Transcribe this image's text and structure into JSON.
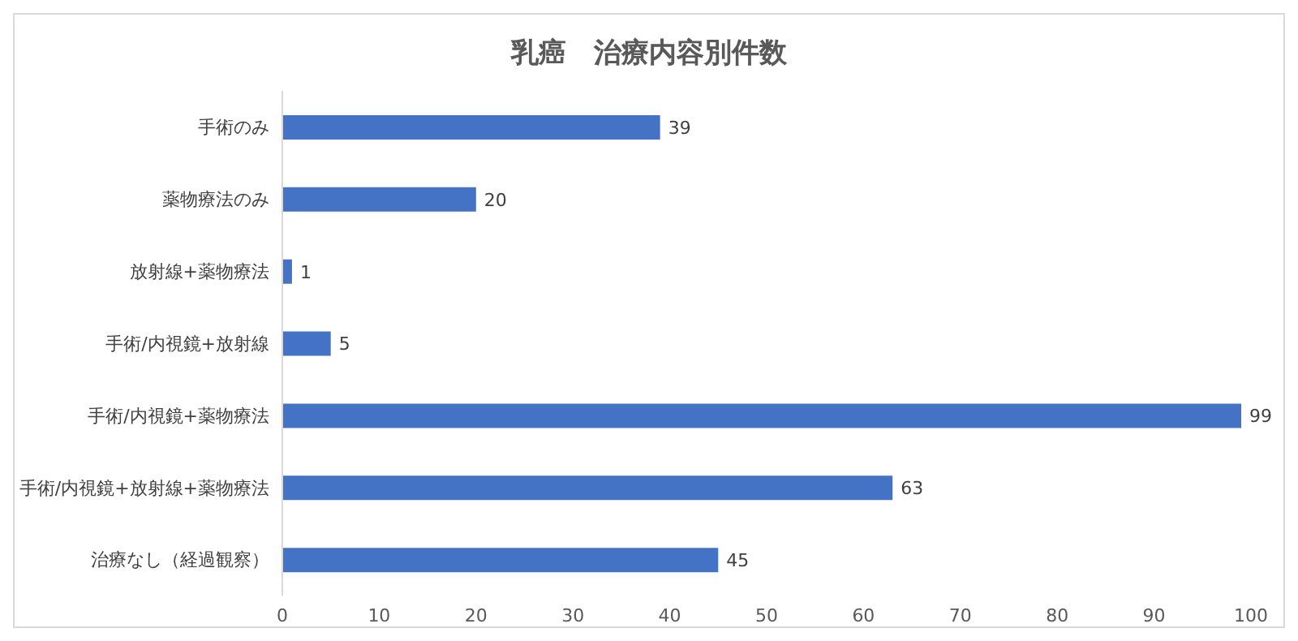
{
  "chart_data": {
    "type": "bar",
    "orientation": "horizontal",
    "title": "乳癌　治療内容別件数",
    "categories": [
      "手術のみ",
      "薬物療法のみ",
      "放射線+薬物療法",
      "手術/内視鏡+放射線",
      "手術/内視鏡+薬物療法",
      "手術/内視鏡+放射線+薬物療法",
      "治療なし（経過観察）"
    ],
    "values": [
      39,
      20,
      1,
      5,
      99,
      63,
      45
    ],
    "color": "#4472c4",
    "xlim": [
      0,
      100
    ],
    "xticks": [
      0,
      10,
      20,
      30,
      40,
      50,
      60,
      70,
      80,
      90,
      100
    ],
    "grid": false,
    "data_labels": true,
    "legend": false
  }
}
